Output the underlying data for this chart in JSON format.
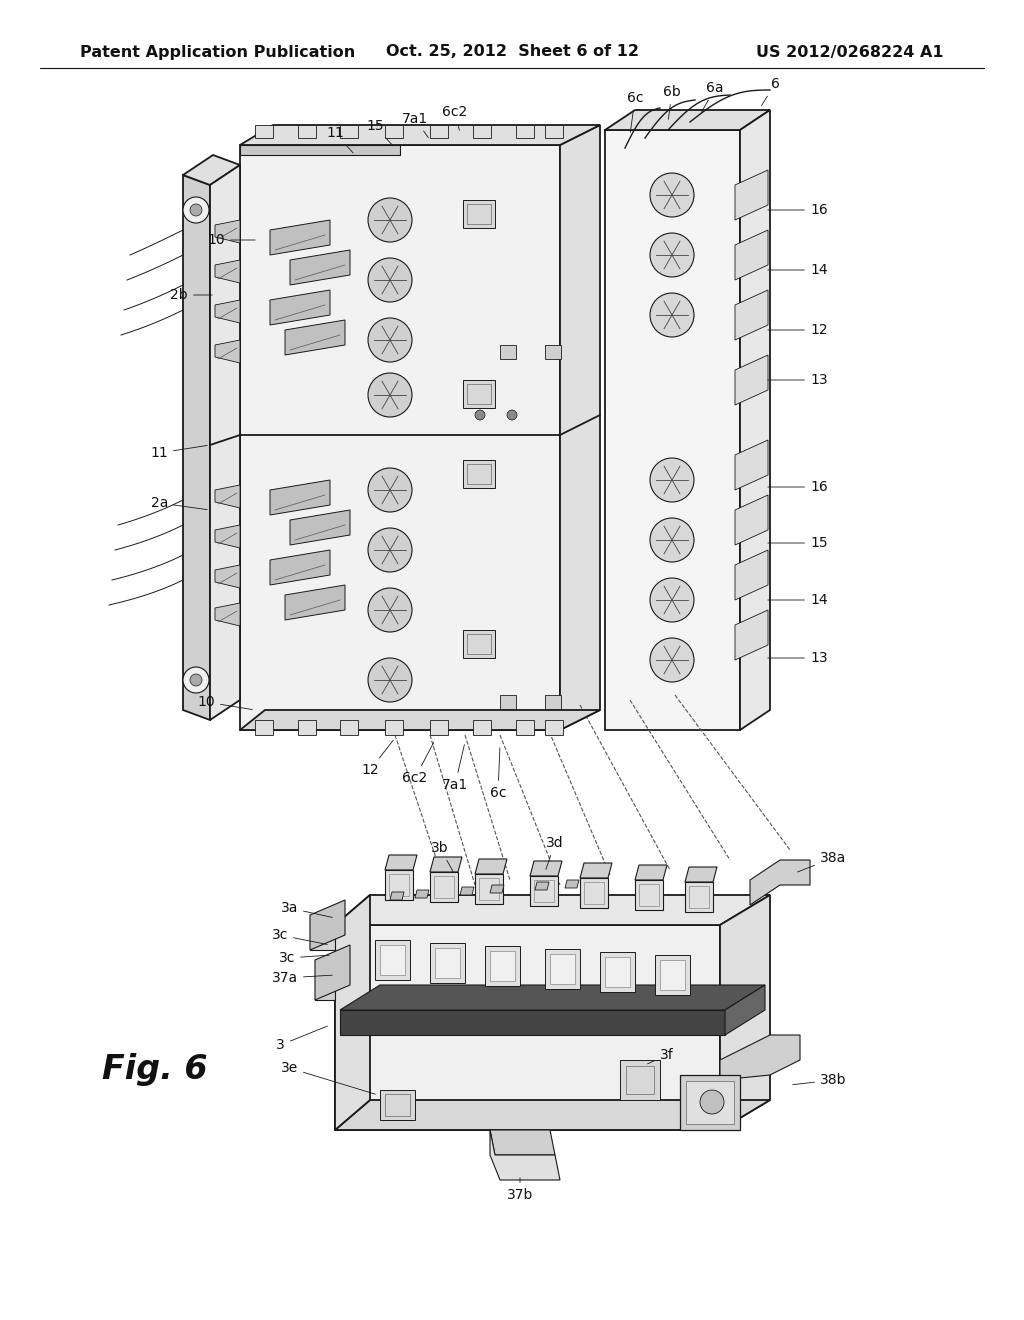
{
  "background_color": "#ffffff",
  "header_left": "Patent Application Publication",
  "header_center": "Oct. 25, 2012  Sheet 6 of 12",
  "header_right": "US 2012/0268224 A1",
  "figure_label": "Fig. 6",
  "label_fontsize": 10,
  "fig_label_fontsize": 24,
  "header_fontsize": 11.5
}
